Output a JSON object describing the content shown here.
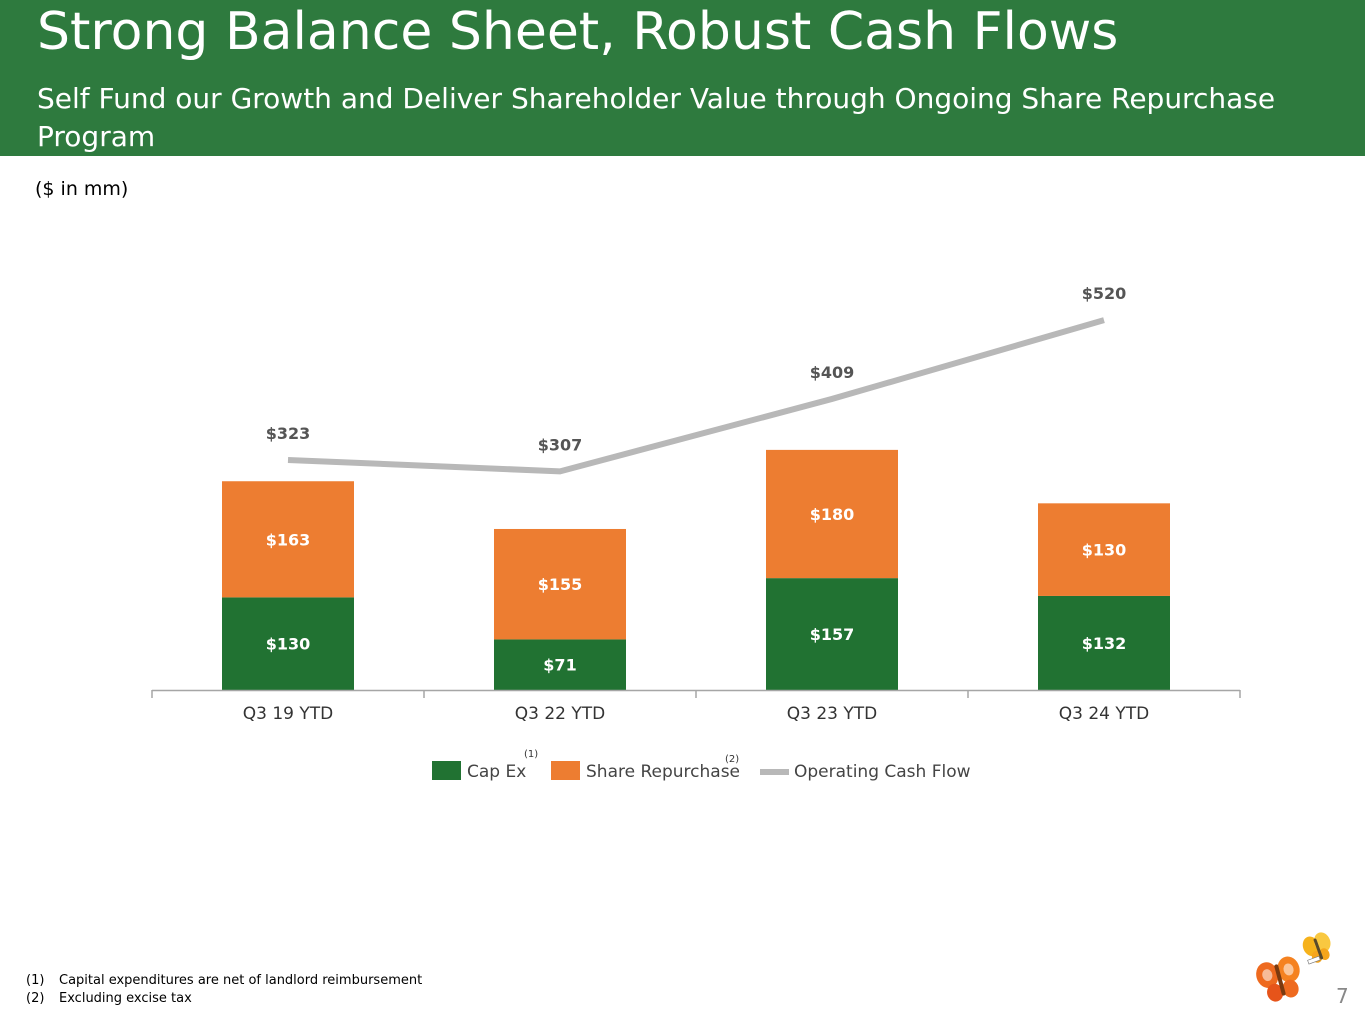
{
  "slide": {
    "title": "Strong Balance Sheet, Robust Cash Flows",
    "subtitle": "Self Fund our Growth and Deliver Shareholder Value through Ongoing Share Repurchase Program",
    "units_note": "($ in mm)",
    "page_number": "7",
    "footnotes": [
      {
        "num": "(1)",
        "text": "Capital expenditures are net of landlord reimbursement"
      },
      {
        "num": "(2)",
        "text": "Excluding excise tax"
      }
    ]
  },
  "colors": {
    "header_bg": "#2e7a3e",
    "cap_ex": "#217232",
    "share_repurchase": "#ed7d31",
    "operating_cash_flow": "#b8b8b8",
    "axis": "#a6a6a6"
  },
  "chart_data": {
    "type": "bar",
    "stacked": true,
    "categories": [
      "Q3 19 YTD",
      "Q3 22 YTD",
      "Q3 23 YTD",
      "Q3 24 YTD"
    ],
    "series": [
      {
        "name": "Cap Ex",
        "footnote": "(1)",
        "values": [
          130,
          71,
          157,
          132
        ],
        "labels": [
          "$130",
          "$71",
          "$157",
          "$132"
        ]
      },
      {
        "name": "Share Repurchase",
        "footnote": "(2)",
        "values": [
          163,
          155,
          180,
          130
        ],
        "labels": [
          "$163",
          "$155",
          "$180",
          "$130"
        ]
      }
    ],
    "line_series": {
      "name": "Operating Cash Flow",
      "type": "line",
      "values": [
        323,
        307,
        409,
        520
      ],
      "labels": [
        "$323",
        "$307",
        "$409",
        "$520"
      ]
    },
    "legend_position": "bottom",
    "grid": false
  }
}
